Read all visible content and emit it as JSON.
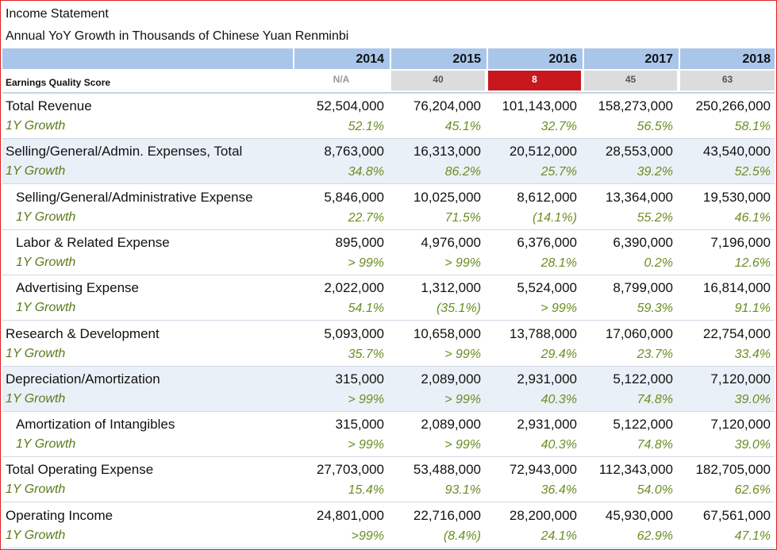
{
  "header": {
    "title": "Income Statement",
    "subtitle": "Annual YoY Growth in Thousands of Chinese Yuan Renminbi"
  },
  "colors": {
    "header_bg": "#a9c6ea",
    "shade_bg": "#eaf0f7",
    "growth_text": "#6b8e23",
    "eq_red": "#c8181e",
    "eq_grey": "#dcdcdc",
    "frame_border": "#e02020"
  },
  "years": [
    "2014",
    "2015",
    "2016",
    "2017",
    "2018"
  ],
  "earnings_quality": {
    "label": "Earnings Quality Score",
    "scores": [
      {
        "value": "N/A",
        "style": "na"
      },
      {
        "value": "40",
        "style": "grey"
      },
      {
        "value": "8",
        "style": "red"
      },
      {
        "value": "45",
        "style": "grey"
      },
      {
        "value": "63",
        "style": "grey"
      }
    ]
  },
  "rows": [
    {
      "label": "Total Revenue",
      "growth_label": "1Y Growth",
      "indent": false,
      "shaded": false,
      "values": [
        "52,504,000",
        "76,204,000",
        "101,143,000",
        "158,273,000",
        "250,266,000"
      ],
      "growth": [
        "52.1%",
        "45.1%",
        "32.7%",
        "56.5%",
        "58.1%"
      ]
    },
    {
      "label": "Selling/General/Admin. Expenses, Total",
      "growth_label": "1Y Growth",
      "indent": false,
      "shaded": true,
      "values": [
        "8,763,000",
        "16,313,000",
        "20,512,000",
        "28,553,000",
        "43,540,000"
      ],
      "growth": [
        "34.8%",
        "86.2%",
        "25.7%",
        "39.2%",
        "52.5%"
      ]
    },
    {
      "label": "Selling/General/Administrative Expense",
      "growth_label": "1Y Growth",
      "indent": true,
      "shaded": false,
      "values": [
        "5,846,000",
        "10,025,000",
        "8,612,000",
        "13,364,000",
        "19,530,000"
      ],
      "growth": [
        "22.7%",
        "71.5%",
        "(14.1%)",
        "55.2%",
        "46.1%"
      ]
    },
    {
      "label": "Labor & Related Expense",
      "growth_label": "1Y Growth",
      "indent": true,
      "shaded": false,
      "values": [
        "895,000",
        "4,976,000",
        "6,376,000",
        "6,390,000",
        "7,196,000"
      ],
      "growth": [
        "> 99%",
        "> 99%",
        "28.1%",
        "0.2%",
        "12.6%"
      ]
    },
    {
      "label": "Advertising Expense",
      "growth_label": "1Y Growth",
      "indent": true,
      "shaded": false,
      "values": [
        "2,022,000",
        "1,312,000",
        "5,524,000",
        "8,799,000",
        "16,814,000"
      ],
      "growth": [
        "54.1%",
        "(35.1%)",
        "> 99%",
        "59.3%",
        "91.1%"
      ]
    },
    {
      "label": "Research & Development",
      "growth_label": "1Y Growth",
      "indent": false,
      "shaded": false,
      "values": [
        "5,093,000",
        "10,658,000",
        "13,788,000",
        "17,060,000",
        "22,754,000"
      ],
      "growth": [
        "35.7%",
        "> 99%",
        "29.4%",
        "23.7%",
        "33.4%"
      ]
    },
    {
      "label": "Depreciation/Amortization",
      "growth_label": "1Y Growth",
      "indent": false,
      "shaded": true,
      "values": [
        "315,000",
        "2,089,000",
        "2,931,000",
        "5,122,000",
        "7,120,000"
      ],
      "growth": [
        "> 99%",
        "> 99%",
        "40.3%",
        "74.8%",
        "39.0%"
      ]
    },
    {
      "label": "Amortization of Intangibles",
      "growth_label": "1Y Growth",
      "indent": true,
      "shaded": false,
      "values": [
        "315,000",
        "2,089,000",
        "2,931,000",
        "5,122,000",
        "7,120,000"
      ],
      "growth": [
        "> 99%",
        "> 99%",
        "40.3%",
        "74.8%",
        "39.0%"
      ]
    },
    {
      "label": "Total Operating Expense",
      "growth_label": "1Y Growth",
      "indent": false,
      "shaded": false,
      "values": [
        "27,703,000",
        "53,488,000",
        "72,943,000",
        "112,343,000",
        "182,705,000"
      ],
      "growth": [
        "15.4%",
        "93.1%",
        "36.4%",
        "54.0%",
        "62.6%"
      ]
    },
    {
      "label": "Operating Income",
      "growth_label": "1Y Growth",
      "indent": false,
      "shaded": false,
      "values": [
        "24,801,000",
        "22,716,000",
        "28,200,000",
        "45,930,000",
        "67,561,000"
      ],
      "growth": [
        ">99%",
        "(8.4%)",
        "24.1%",
        "62.9%",
        "47.1%"
      ]
    }
  ]
}
